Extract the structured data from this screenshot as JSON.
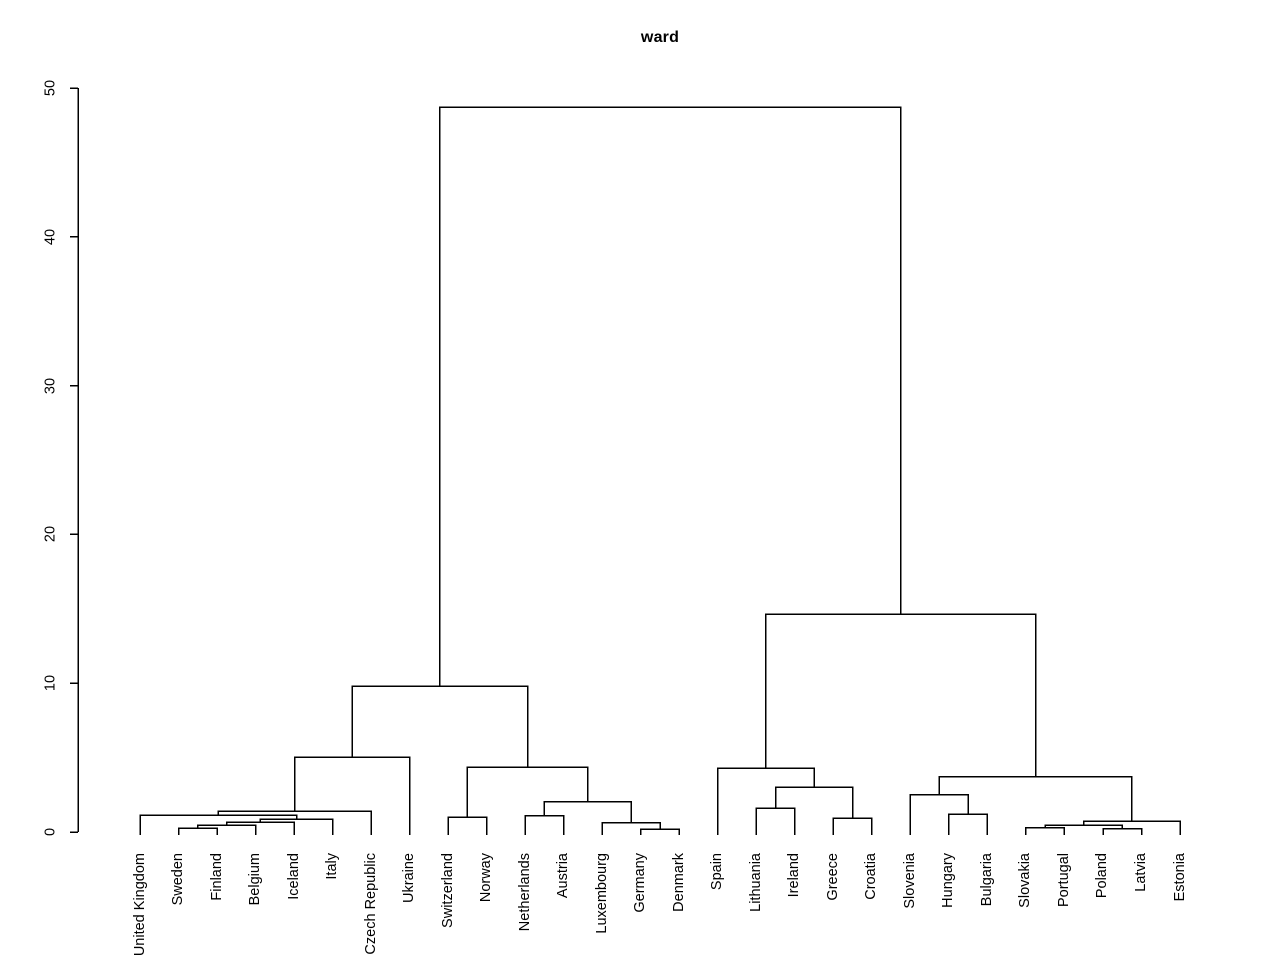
{
  "figure": {
    "title": "ward"
  },
  "chart_data": {
    "type": "dendrogram",
    "title": "ward",
    "xlabel": "",
    "ylabel": "",
    "legend": "none",
    "grid": false,
    "y_axis": {
      "range": [
        0,
        50
      ],
      "ticks": [
        0,
        10,
        20,
        30,
        40,
        50
      ]
    },
    "leaf_order": [
      "United Kingdom",
      "Sweden",
      "Finland",
      "Belgium",
      "Iceland",
      "Italy",
      "Czech Republic",
      "Ukraine",
      "Switzerland",
      "Norway",
      "Netherlands",
      "Austria",
      "Luxembourg",
      "Germany",
      "Denmark",
      "Spain",
      "Lithuania",
      "Ireland",
      "Greece",
      "Croatia",
      "Slovenia",
      "Hungary",
      "Bulgaria",
      "Slovakia",
      "Portugal",
      "Poland",
      "Latvia",
      "Estonia"
    ],
    "tree": {
      "height": 48.7,
      "children": [
        {
          "height": 9.8,
          "children": [
            {
              "height": 5.04,
              "children": [
                {
                  "height": 1.41,
                  "children": [
                    {
                      "height": 1.14,
                      "children": [
                        {
                          "name": "United Kingdom"
                        },
                        {
                          "height": 0.87,
                          "children": [
                            {
                              "height": 0.67,
                              "children": [
                                {
                                  "height": 0.47,
                                  "children": [
                                    {
                                      "height": 0.27,
                                      "children": [
                                        {
                                          "name": "Sweden"
                                        },
                                        {
                                          "name": "Finland"
                                        }
                                      ]
                                    },
                                    {
                                      "name": "Belgium"
                                    }
                                  ]
                                },
                                {
                                  "name": "Iceland"
                                }
                              ]
                            },
                            {
                              "name": "Italy"
                            }
                          ]
                        }
                      ]
                    },
                    {
                      "name": "Czech Republic"
                    }
                  ]
                },
                {
                  "name": "Ukraine"
                }
              ]
            },
            {
              "height": 4.37,
              "children": [
                {
                  "height": 1.01,
                  "children": [
                    {
                      "name": "Switzerland"
                    },
                    {
                      "name": "Norway"
                    }
                  ]
                },
                {
                  "height": 2.02,
                  "children": [
                    {
                      "height": 1.08,
                      "children": [
                        {
                          "name": "Netherlands"
                        },
                        {
                          "name": "Austria"
                        }
                      ]
                    },
                    {
                      "height": 0.63,
                      "children": [
                        {
                          "name": "Luxembourg"
                        },
                        {
                          "height": 0.2,
                          "children": [
                            {
                              "name": "Germany"
                            },
                            {
                              "name": "Denmark"
                            }
                          ]
                        }
                      ]
                    }
                  ]
                }
              ]
            }
          ]
        },
        {
          "height": 14.65,
          "children": [
            {
              "height": 4.3,
              "children": [
                {
                  "name": "Spain"
                },
                {
                  "height": 3.02,
                  "children": [
                    {
                      "height": 1.61,
                      "children": [
                        {
                          "name": "Lithuania"
                        },
                        {
                          "name": "Ireland"
                        }
                      ]
                    },
                    {
                      "height": 0.94,
                      "children": [
                        {
                          "name": "Greece"
                        },
                        {
                          "name": "Croatia"
                        }
                      ]
                    }
                  ]
                }
              ]
            },
            {
              "height": 3.7,
              "children": [
                {
                  "height": 2.49,
                  "children": [
                    {
                      "name": "Slovenia"
                    },
                    {
                      "height": 1.21,
                      "children": [
                        {
                          "name": "Hungary"
                        },
                        {
                          "name": "Bulgaria"
                        }
                      ]
                    }
                  ]
                },
                {
                  "height": 0.74,
                  "children": [
                    {
                      "height": 0.47,
                      "children": [
                        {
                          "height": 0.3,
                          "children": [
                            {
                              "name": "Slovakia"
                            },
                            {
                              "name": "Portugal"
                            }
                          ]
                        },
                        {
                          "height": 0.22,
                          "children": [
                            {
                              "name": "Poland"
                            },
                            {
                              "name": "Latvia"
                            }
                          ]
                        }
                      ]
                    },
                    {
                      "name": "Estonia"
                    }
                  ]
                }
              ]
            }
          ]
        }
      ]
    },
    "colors": {
      "line": "#000000",
      "background": "#ffffff",
      "text": "#000000"
    }
  }
}
